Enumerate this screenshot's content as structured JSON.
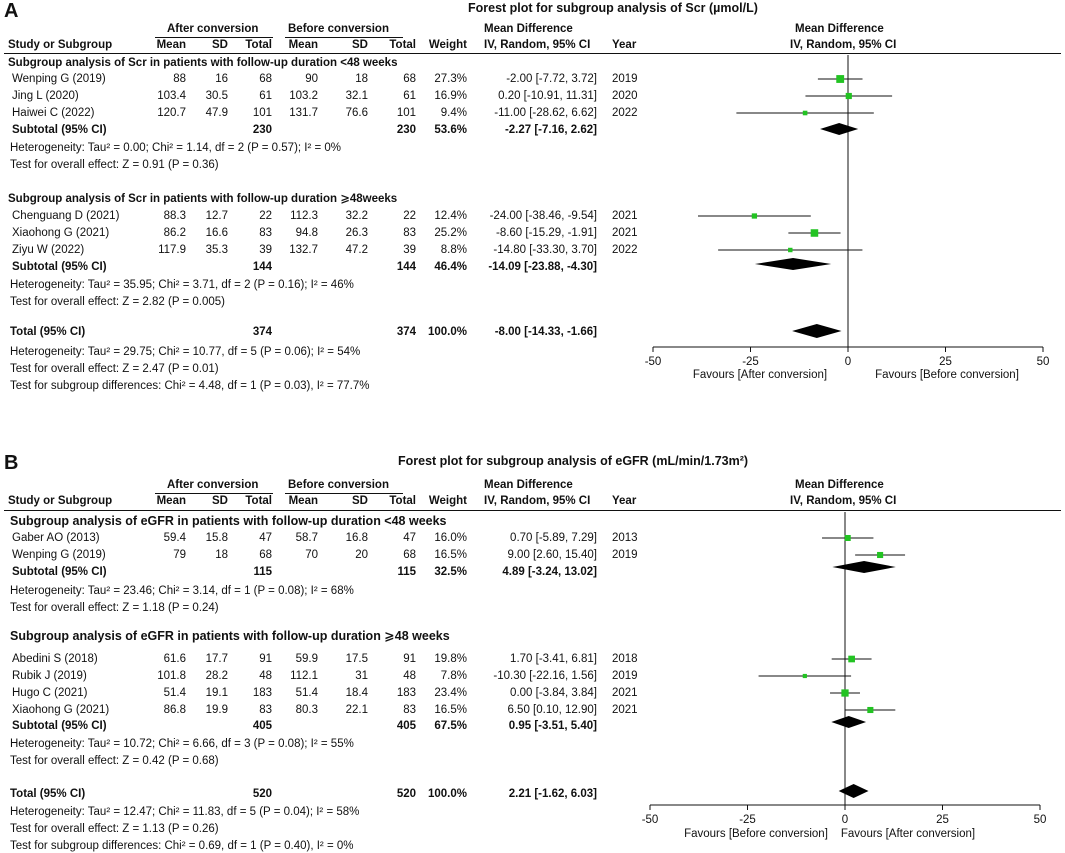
{
  "chart_data": [
    {
      "type": "forest",
      "panel": "A",
      "title": "Forest plot for subgroup analysis of Scr (µmol/L)",
      "columns": {
        "group_after": "After conversion",
        "group_before": "Before conversion",
        "md_header_1": "Mean Difference",
        "md_header_2": "IV, Random, 95% CI",
        "study": "Study or Subgroup",
        "mean": "Mean",
        "sd": "SD",
        "total": "Total",
        "weight": "Weight",
        "year": "Year"
      },
      "axis": {
        "xlim": [
          -50,
          50
        ],
        "ticks": [
          -50,
          -25,
          0,
          25,
          50
        ],
        "tick_labels": [
          "-50",
          "-25",
          "0",
          "25",
          "50"
        ],
        "favours_left": "Favours [After conversion]",
        "favours_right": "Favours [Before conversion]"
      },
      "subgroups": [
        {
          "heading": "Subgroup analysis of Scr in patients with follow-up duration <48 weeks",
          "studies": [
            {
              "study": "Wenping G (2019)",
              "mean_a": "88",
              "sd_a": "16",
              "n_a": "68",
              "mean_b": "90",
              "sd_b": "18",
              "n_b": "68",
              "weight": "27.3%",
              "ci_text": "-2.00 [-7.72, 3.72]",
              "year": "2019",
              "md": -2.0,
              "lo": -7.72,
              "hi": 3.72
            },
            {
              "study": "Jing L (2020)",
              "mean_a": "103.4",
              "sd_a": "30.5",
              "n_a": "61",
              "mean_b": "103.2",
              "sd_b": "32.1",
              "n_b": "61",
              "weight": "16.9%",
              "ci_text": "0.20 [-10.91, 11.31]",
              "year": "2020",
              "md": 0.2,
              "lo": -10.91,
              "hi": 11.31
            },
            {
              "study": "Haiwei C (2022)",
              "mean_a": "120.7",
              "sd_a": "47.9",
              "n_a": "101",
              "mean_b": "131.7",
              "sd_b": "76.6",
              "n_b": "101",
              "weight": "9.4%",
              "ci_text": "-11.00 [-28.62, 6.62]",
              "year": "2022",
              "md": -11.0,
              "lo": -28.62,
              "hi": 6.62
            }
          ],
          "subtotal": {
            "label": "Subtotal (95% CI)",
            "n_a": "230",
            "n_b": "230",
            "weight": "53.6%",
            "ci_text": "-2.27 [-7.16, 2.62]",
            "md": -2.27,
            "lo": -7.16,
            "hi": 2.62
          },
          "het": "Heterogeneity: Tau² = 0.00; Chi² = 1.14, df = 2 (P = 0.57); I² = 0%",
          "effect": "Test for overall effect: Z = 0.91 (P = 0.36)"
        },
        {
          "heading": "Subgroup analysis of Scr in patients with follow-up duration ⩾48weeks",
          "studies": [
            {
              "study": "Chenguang D (2021)",
              "mean_a": "88.3",
              "sd_a": "12.7",
              "n_a": "22",
              "mean_b": "112.3",
              "sd_b": "32.2",
              "n_b": "22",
              "weight": "12.4%",
              "ci_text": "-24.00 [-38.46, -9.54]",
              "year": "2021",
              "md": -24.0,
              "lo": -38.46,
              "hi": -9.54
            },
            {
              "study": "Xiaohong G (2021)",
              "mean_a": "86.2",
              "sd_a": "16.6",
              "n_a": "83",
              "mean_b": "94.8",
              "sd_b": "26.3",
              "n_b": "83",
              "weight": "25.2%",
              "ci_text": "-8.60 [-15.29, -1.91]",
              "year": "2021",
              "md": -8.6,
              "lo": -15.29,
              "hi": -1.91
            },
            {
              "study": "Ziyu W (2022)",
              "mean_a": "117.9",
              "sd_a": "35.3",
              "n_a": "39",
              "mean_b": "132.7",
              "sd_b": "47.2",
              "n_b": "39",
              "weight": "8.8%",
              "ci_text": "-14.80 [-33.30, 3.70]",
              "year": "2022",
              "md": -14.8,
              "lo": -33.3,
              "hi": 3.7
            }
          ],
          "subtotal": {
            "label": "Subtotal (95% CI)",
            "n_a": "144",
            "n_b": "144",
            "weight": "46.4%",
            "ci_text": "-14.09 [-23.88, -4.30]",
            "md": -14.09,
            "lo": -23.88,
            "hi": -4.3
          },
          "het": "Heterogeneity: Tau² = 35.95; Chi² = 3.71, df = 2 (P = 0.16); I² = 46%",
          "effect": "Test for overall effect: Z = 2.82 (P = 0.005)"
        }
      ],
      "total": {
        "label": "Total (95% CI)",
        "n_a": "374",
        "n_b": "374",
        "weight": "100.0%",
        "ci_text": "-8.00 [-14.33, -1.66]",
        "md": -8.0,
        "lo": -14.33,
        "hi": -1.66
      },
      "total_het": "Heterogeneity: Tau² = 29.75; Chi² = 10.77, df = 5 (P = 0.06); I² = 54%",
      "total_effect": "Test for overall effect: Z = 2.47 (P = 0.01)",
      "subgroup_diff": "Test for subgroup differences: Chi² = 4.48, df = 1 (P = 0.03), I² = 77.7%"
    },
    {
      "type": "forest",
      "panel": "B",
      "title": "Forest plot for subgroup analysis of eGFR (mL/min/1.73m²)",
      "columns": {
        "group_after": "After conversion",
        "group_before": "Before conversion",
        "md_header_1": "Mean Difference",
        "md_header_2": "IV, Random, 95% CI",
        "study": "Study or Subgroup",
        "mean": "Mean",
        "sd": "SD",
        "total": "Total",
        "weight": "Weight",
        "year": "Year"
      },
      "axis": {
        "xlim": [
          -50,
          50
        ],
        "ticks": [
          -50,
          -25,
          0,
          25,
          50
        ],
        "tick_labels": [
          "-50",
          "-25",
          "0",
          "25",
          "50"
        ],
        "favours_left": "Favours [Before conversion]",
        "favours_right": "Favours [After conversion]"
      },
      "subgroups": [
        {
          "heading": "Subgroup analysis of eGFR in patients with follow-up duration <48 weeks",
          "studies": [
            {
              "study": "Gaber AO (2013)",
              "mean_a": "59.4",
              "sd_a": "15.8",
              "n_a": "47",
              "mean_b": "58.7",
              "sd_b": "16.8",
              "n_b": "47",
              "weight": "16.0%",
              "ci_text": "0.70 [-5.89, 7.29]",
              "year": "2013",
              "md": 0.7,
              "lo": -5.89,
              "hi": 7.29
            },
            {
              "study": "Wenping G (2019)",
              "mean_a": "79",
              "sd_a": "18",
              "n_a": "68",
              "mean_b": "70",
              "sd_b": "20",
              "n_b": "68",
              "weight": "16.5%",
              "ci_text": "9.00 [2.60, 15.40]",
              "year": "2019",
              "md": 9.0,
              "lo": 2.6,
              "hi": 15.4
            }
          ],
          "subtotal": {
            "label": "Subtotal (95% CI)",
            "n_a": "115",
            "n_b": "115",
            "weight": "32.5%",
            "ci_text": "4.89 [-3.24, 13.02]",
            "md": 4.89,
            "lo": -3.24,
            "hi": 13.02
          },
          "het": "Heterogeneity: Tau² = 23.46; Chi² = 3.14, df = 1 (P = 0.08); I² = 68%",
          "effect": "Test for overall effect: Z = 1.18 (P = 0.24)"
        },
        {
          "heading": "Subgroup analysis of eGFR in patients with follow-up duration ⩾48 weeks",
          "studies": [
            {
              "study": "Abedini S (2018)",
              "mean_a": "61.6",
              "sd_a": "17.7",
              "n_a": "91",
              "mean_b": "59.9",
              "sd_b": "17.5",
              "n_b": "91",
              "weight": "19.8%",
              "ci_text": "1.70 [-3.41, 6.81]",
              "year": "2018",
              "md": 1.7,
              "lo": -3.41,
              "hi": 6.81
            },
            {
              "study": "Rubik J (2019)",
              "mean_a": "101.8",
              "sd_a": "28.2",
              "n_a": "48",
              "mean_b": "112.1",
              "sd_b": "31",
              "n_b": "48",
              "weight": "7.8%",
              "ci_text": "-10.30 [-22.16, 1.56]",
              "year": "2019",
              "md": -10.3,
              "lo": -22.16,
              "hi": 1.56
            },
            {
              "study": "Hugo C (2021)",
              "mean_a": "51.4",
              "sd_a": "19.1",
              "n_a": "183",
              "mean_b": "51.4",
              "sd_b": "18.4",
              "n_b": "183",
              "weight": "23.4%",
              "ci_text": "0.00 [-3.84, 3.84]",
              "year": "2021",
              "md": 0.0,
              "lo": -3.84,
              "hi": 3.84
            },
            {
              "study": "Xiaohong G (2021)",
              "mean_a": "86.8",
              "sd_a": "19.9",
              "n_a": "83",
              "mean_b": "80.3",
              "sd_b": "22.1",
              "n_b": "83",
              "weight": "16.5%",
              "ci_text": "6.50 [0.10, 12.90]",
              "year": "2021",
              "md": 6.5,
              "lo": 0.1,
              "hi": 12.9
            }
          ],
          "subtotal": {
            "label": "Subtotal (95% CI)",
            "n_a": "405",
            "n_b": "405",
            "weight": "67.5%",
            "ci_text": "0.95 [-3.51, 5.40]",
            "md": 0.95,
            "lo": -3.51,
            "hi": 5.4
          },
          "het": "Heterogeneity: Tau² = 10.72; Chi² = 6.66, df = 3 (P = 0.08); I² = 55%",
          "effect": "Test for overall effect: Z = 0.42 (P = 0.68)"
        }
      ],
      "total": {
        "label": "Total (95% CI)",
        "n_a": "520",
        "n_b": "520",
        "weight": "100.0%",
        "ci_text": "2.21 [-1.62, 6.03]",
        "md": 2.21,
        "lo": -1.62,
        "hi": 6.03
      },
      "total_het": "Heterogeneity: Tau² = 12.47; Chi² = 11.83, df = 5 (P = 0.04); I² = 58%",
      "total_effect": "Test for overall effect: Z = 1.13 (P = 0.26)",
      "subgroup_diff": "Test for subgroup differences: Chi² = 0.69, df = 1 (P = 0.40), I² = 0%"
    }
  ],
  "colors": {
    "point": "#22c322",
    "diamond": "#000000",
    "line": "#111111"
  }
}
